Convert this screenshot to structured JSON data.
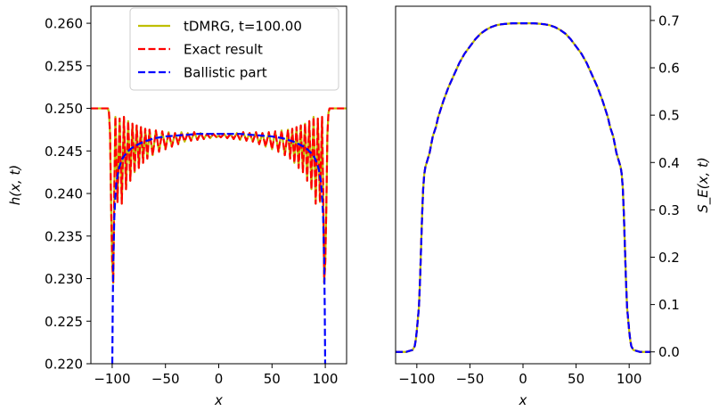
{
  "chart_data": [
    {
      "type": "line",
      "xlabel": "x",
      "ylabel": "h(x, t)",
      "xlim": [
        -120,
        120
      ],
      "ylim": [
        0.22,
        0.262
      ],
      "xticks": [
        -100,
        -50,
        0,
        50,
        100
      ],
      "xtick_labels": [
        "−100",
        "−50",
        "0",
        "50",
        "100"
      ],
      "yticks": [
        0.22,
        0.225,
        0.23,
        0.235,
        0.24,
        0.245,
        0.25,
        0.255,
        0.26
      ],
      "ytick_labels": [
        "0.220",
        "0.225",
        "0.230",
        "0.235",
        "0.240",
        "0.245",
        "0.250",
        "0.255",
        "0.260"
      ],
      "legend": {
        "placement": "top-right",
        "entries": [
          {
            "label": "tDMRG, t=100.00",
            "color": "#bfbf00",
            "style": "solid"
          },
          {
            "label": "Exact result",
            "color": "#ff0000",
            "style": "dashed"
          },
          {
            "label": "Ballistic part",
            "color": "#0000ff",
            "style": "dashed"
          }
        ]
      },
      "series": [
        {
          "name": "tDMRG, t=100.00",
          "color": "#bfbf00",
          "style": "solid",
          "x": [
            -120,
            -104,
            -103,
            -102,
            -101,
            -100,
            -99,
            -98,
            -97,
            -95,
            -93,
            -91,
            -89,
            -87,
            -85,
            -83,
            -81,
            -79,
            -77,
            -75,
            -73,
            -71,
            -69,
            -67,
            -65,
            -62,
            -59,
            -56,
            -53,
            -50,
            -47,
            -44,
            -41,
            -38,
            -35,
            -32,
            -29,
            -26,
            -23,
            -20,
            -17,
            -14,
            -11,
            -8,
            -5,
            -2,
            0,
            2,
            5,
            8,
            11,
            14,
            17,
            20,
            23,
            26,
            29,
            32,
            35,
            38,
            41,
            44,
            47,
            50,
            53,
            56,
            59,
            62,
            65,
            67,
            69,
            71,
            73,
            75,
            77,
            79,
            81,
            83,
            85,
            87,
            89,
            91,
            93,
            95,
            97,
            98,
            99,
            100,
            101,
            102,
            103,
            104,
            120
          ],
          "y": [
            0.25,
            0.25,
            0.2495,
            0.247,
            0.2385,
            0.232,
            0.2295,
            0.2405,
            0.249,
            0.239,
            0.2488,
            0.2388,
            0.249,
            0.2405,
            0.2485,
            0.2415,
            0.2482,
            0.2425,
            0.248,
            0.243,
            0.2478,
            0.2436,
            0.2476,
            0.2441,
            0.2475,
            0.2445,
            0.2474,
            0.2449,
            0.2473,
            0.2452,
            0.2472,
            0.2455,
            0.2471,
            0.2458,
            0.2472,
            0.2461,
            0.2471,
            0.2462,
            0.2472,
            0.2463,
            0.2471,
            0.2464,
            0.247,
            0.2465,
            0.247,
            0.2466,
            0.2468,
            0.2466,
            0.247,
            0.2465,
            0.247,
            0.2464,
            0.2471,
            0.2463,
            0.2472,
            0.2462,
            0.2471,
            0.2461,
            0.2472,
            0.2458,
            0.2471,
            0.2455,
            0.2472,
            0.2452,
            0.2473,
            0.2449,
            0.2474,
            0.2445,
            0.2475,
            0.2441,
            0.2476,
            0.2436,
            0.2478,
            0.243,
            0.248,
            0.2425,
            0.2482,
            0.2415,
            0.2485,
            0.2405,
            0.249,
            0.2388,
            0.2488,
            0.239,
            0.249,
            0.2405,
            0.2295,
            0.232,
            0.2385,
            0.247,
            0.2495,
            0.25,
            0.25
          ]
        },
        {
          "name": "Exact result",
          "color": "#ff0000",
          "style": "dashed",
          "x": [
            -120,
            -104,
            -103,
            -102,
            -101,
            -100,
            -99,
            -98,
            -97,
            -95,
            -93,
            -91,
            -89,
            -87,
            -85,
            -83,
            -81,
            -79,
            -77,
            -75,
            -73,
            -71,
            -69,
            -67,
            -65,
            -62,
            -59,
            -56,
            -53,
            -50,
            -47,
            -44,
            -41,
            -38,
            -35,
            -32,
            -29,
            -26,
            -23,
            -20,
            -17,
            -14,
            -11,
            -8,
            -5,
            -2,
            0,
            2,
            5,
            8,
            11,
            14,
            17,
            20,
            23,
            26,
            29,
            32,
            35,
            38,
            41,
            44,
            47,
            50,
            53,
            56,
            59,
            62,
            65,
            67,
            69,
            71,
            73,
            75,
            77,
            79,
            81,
            83,
            85,
            87,
            89,
            91,
            93,
            95,
            97,
            98,
            99,
            100,
            101,
            102,
            103,
            104,
            120
          ],
          "y": [
            0.25,
            0.25,
            0.2495,
            0.247,
            0.2385,
            0.232,
            0.2295,
            0.2405,
            0.249,
            0.239,
            0.2488,
            0.2388,
            0.249,
            0.2405,
            0.2485,
            0.2415,
            0.2482,
            0.2425,
            0.248,
            0.243,
            0.2478,
            0.2436,
            0.2476,
            0.2441,
            0.2475,
            0.2445,
            0.2474,
            0.2449,
            0.2473,
            0.2452,
            0.2472,
            0.2455,
            0.2471,
            0.2458,
            0.2472,
            0.2461,
            0.2471,
            0.2462,
            0.2472,
            0.2463,
            0.2471,
            0.2464,
            0.247,
            0.2465,
            0.247,
            0.2466,
            0.2468,
            0.2466,
            0.247,
            0.2465,
            0.247,
            0.2464,
            0.2471,
            0.2463,
            0.2472,
            0.2462,
            0.2471,
            0.2461,
            0.2472,
            0.2458,
            0.2471,
            0.2455,
            0.2472,
            0.2452,
            0.2473,
            0.2449,
            0.2474,
            0.2445,
            0.2475,
            0.2441,
            0.2476,
            0.2436,
            0.2478,
            0.243,
            0.248,
            0.2425,
            0.2482,
            0.2415,
            0.2485,
            0.2405,
            0.249,
            0.2388,
            0.2488,
            0.239,
            0.249,
            0.2405,
            0.2295,
            0.232,
            0.2385,
            0.247,
            0.2495,
            0.25,
            0.25
          ]
        },
        {
          "name": "Ballistic part",
          "color": "#0000ff",
          "style": "dashed",
          "x": [
            -99.9,
            -99.5,
            -99,
            -98,
            -97,
            -96,
            -94,
            -92,
            -90,
            -87,
            -84,
            -80,
            -75,
            -70,
            -65,
            -60,
            -50,
            -40,
            -30,
            -20,
            -10,
            0,
            10,
            20,
            30,
            40,
            50,
            60,
            65,
            70,
            75,
            80,
            84,
            87,
            90,
            92,
            94,
            96,
            97,
            98,
            99,
            99.5,
            99.9
          ],
          "y": [
            0.22,
            0.2265,
            0.2318,
            0.2372,
            0.2397,
            0.2413,
            0.2428,
            0.2436,
            0.2442,
            0.2447,
            0.2451,
            0.2455,
            0.2458,
            0.2461,
            0.2463,
            0.2465,
            0.2467,
            0.2468,
            0.2469,
            0.247,
            0.247,
            0.247,
            0.247,
            0.247,
            0.2469,
            0.2468,
            0.2467,
            0.2465,
            0.2463,
            0.2461,
            0.2458,
            0.2455,
            0.2451,
            0.2447,
            0.2442,
            0.2436,
            0.2428,
            0.2413,
            0.2397,
            0.2372,
            0.2318,
            0.2265,
            0.22
          ]
        }
      ]
    },
    {
      "type": "line",
      "xlabel": "x",
      "ylabel": "S_E(x, t)",
      "xlim": [
        -120,
        120
      ],
      "ylim": [
        -0.025,
        0.73
      ],
      "yaxis_side": "right",
      "xticks": [
        -100,
        -50,
        0,
        50,
        100
      ],
      "xtick_labels": [
        "−100",
        "−50",
        "0",
        "50",
        "100"
      ],
      "yticks": [
        0.0,
        0.1,
        0.2,
        0.3,
        0.4,
        0.5,
        0.6,
        0.7
      ],
      "ytick_labels": [
        "0.0",
        "0.1",
        "0.2",
        "0.3",
        "0.4",
        "0.5",
        "0.6",
        "0.7"
      ],
      "series": [
        {
          "color": "#bfbf00",
          "style": "solid",
          "x": [
            -120,
            -110,
            -104,
            -102,
            -101,
            -100,
            -99,
            -98,
            -97,
            -96,
            -95,
            -94,
            -93,
            -92,
            -90,
            -88,
            -85,
            -82,
            -80,
            -75,
            -70,
            -65,
            -60,
            -55,
            -50,
            -45,
            -40,
            -35,
            -30,
            -25,
            -20,
            -15,
            -10,
            -5,
            0,
            5,
            10,
            15,
            20,
            25,
            30,
            35,
            40,
            45,
            50,
            55,
            60,
            65,
            70,
            75,
            80,
            82,
            85,
            88,
            90,
            92,
            93,
            94,
            95,
            96,
            97,
            98,
            99,
            100,
            101,
            102,
            104,
            110,
            120
          ],
          "y": [
            0.0,
            0.0,
            0.004,
            0.012,
            0.025,
            0.045,
            0.07,
            0.095,
            0.15,
            0.22,
            0.29,
            0.345,
            0.375,
            0.39,
            0.405,
            0.42,
            0.455,
            0.475,
            0.495,
            0.53,
            0.56,
            0.585,
            0.61,
            0.63,
            0.645,
            0.66,
            0.672,
            0.68,
            0.686,
            0.69,
            0.692,
            0.693,
            0.694,
            0.694,
            0.694,
            0.694,
            0.694,
            0.693,
            0.692,
            0.69,
            0.686,
            0.68,
            0.672,
            0.66,
            0.645,
            0.63,
            0.61,
            0.585,
            0.56,
            0.53,
            0.495,
            0.475,
            0.455,
            0.42,
            0.405,
            0.39,
            0.375,
            0.345,
            0.29,
            0.22,
            0.15,
            0.095,
            0.07,
            0.045,
            0.025,
            0.012,
            0.004,
            0.0,
            0.0
          ]
        },
        {
          "color": "#ff0000",
          "style": "dashed",
          "x": [
            -120,
            -110,
            -104,
            -102,
            -101,
            -100,
            -99,
            -98,
            -97,
            -96,
            -95,
            -94,
            -93,
            -92,
            -90,
            -88,
            -85,
            -82,
            -80,
            -75,
            -70,
            -65,
            -60,
            -55,
            -50,
            -45,
            -40,
            -35,
            -30,
            -25,
            -20,
            -15,
            -10,
            -5,
            0,
            5,
            10,
            15,
            20,
            25,
            30,
            35,
            40,
            45,
            50,
            55,
            60,
            65,
            70,
            75,
            80,
            82,
            85,
            88,
            90,
            92,
            93,
            94,
            95,
            96,
            97,
            98,
            99,
            100,
            101,
            102,
            104,
            110,
            120
          ],
          "y": [
            0.0,
            0.0,
            0.004,
            0.012,
            0.025,
            0.045,
            0.07,
            0.095,
            0.15,
            0.22,
            0.29,
            0.345,
            0.375,
            0.39,
            0.405,
            0.42,
            0.455,
            0.475,
            0.495,
            0.53,
            0.56,
            0.585,
            0.61,
            0.63,
            0.645,
            0.66,
            0.672,
            0.68,
            0.686,
            0.69,
            0.692,
            0.693,
            0.694,
            0.694,
            0.694,
            0.694,
            0.694,
            0.693,
            0.692,
            0.69,
            0.686,
            0.68,
            0.672,
            0.66,
            0.645,
            0.63,
            0.61,
            0.585,
            0.56,
            0.53,
            0.495,
            0.475,
            0.455,
            0.42,
            0.405,
            0.39,
            0.375,
            0.345,
            0.29,
            0.22,
            0.15,
            0.095,
            0.07,
            0.045,
            0.025,
            0.012,
            0.004,
            0.0,
            0.0
          ]
        },
        {
          "color": "#0000ff",
          "style": "dashed",
          "x": [
            -120,
            -110,
            -104,
            -102,
            -101,
            -100,
            -99,
            -98,
            -97,
            -96,
            -95,
            -94,
            -93,
            -92,
            -90,
            -88,
            -85,
            -82,
            -80,
            -75,
            -70,
            -65,
            -60,
            -55,
            -50,
            -45,
            -40,
            -35,
            -30,
            -25,
            -20,
            -15,
            -10,
            -5,
            0,
            5,
            10,
            15,
            20,
            25,
            30,
            35,
            40,
            45,
            50,
            55,
            60,
            65,
            70,
            75,
            80,
            82,
            85,
            88,
            90,
            92,
            93,
            94,
            95,
            96,
            97,
            98,
            99,
            100,
            101,
            102,
            104,
            110,
            120
          ],
          "y": [
            0.0,
            0.0,
            0.004,
            0.012,
            0.025,
            0.045,
            0.07,
            0.095,
            0.15,
            0.22,
            0.29,
            0.345,
            0.375,
            0.39,
            0.405,
            0.42,
            0.455,
            0.475,
            0.495,
            0.53,
            0.56,
            0.585,
            0.61,
            0.63,
            0.645,
            0.66,
            0.672,
            0.68,
            0.686,
            0.69,
            0.692,
            0.693,
            0.694,
            0.694,
            0.694,
            0.694,
            0.694,
            0.693,
            0.692,
            0.69,
            0.686,
            0.68,
            0.672,
            0.66,
            0.645,
            0.63,
            0.61,
            0.585,
            0.56,
            0.53,
            0.495,
            0.475,
            0.455,
            0.42,
            0.405,
            0.39,
            0.375,
            0.345,
            0.29,
            0.22,
            0.15,
            0.095,
            0.07,
            0.045,
            0.025,
            0.012,
            0.004,
            0.0,
            0.0
          ]
        }
      ]
    }
  ]
}
